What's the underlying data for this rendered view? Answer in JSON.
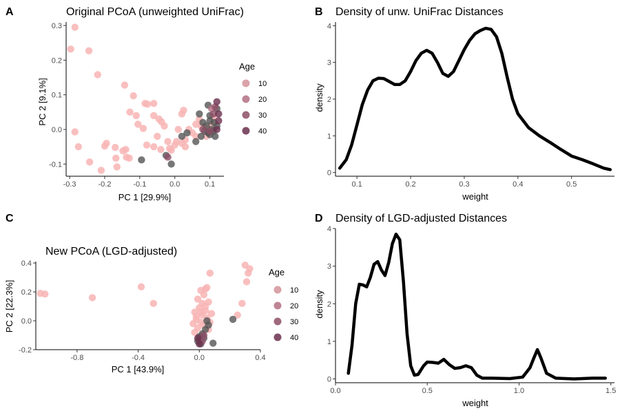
{
  "panels": [
    {
      "letter": "A",
      "title": "Original PCoA (unweighted UniFrac)"
    },
    {
      "letter": "B",
      "title": "Density of unw. UniFrac Distances"
    },
    {
      "letter": "C",
      "title": "New PCoA (LGD-adjusted)"
    },
    {
      "letter": "D",
      "title": "Density of LGD-adjusted Distances"
    }
  ],
  "colors": {
    "pink": "#f8b4b4",
    "gray": "#555555",
    "age10": "#d4939a",
    "age20": "#b37183",
    "age30": "#8e4f66",
    "age40": "#6b2f4d",
    "line": "#000000"
  },
  "chart_data": [
    {
      "type": "scatter",
      "title": "Original PCoA (unweighted UniFrac)",
      "xlabel": "PC 1 [29.9%]",
      "ylabel": "PC 2 [9.1%]",
      "xlim": [
        -0.31,
        0.14
      ],
      "ylim": [
        -0.135,
        0.31
      ],
      "xticks": [
        -0.3,
        -0.2,
        -0.1,
        0.0,
        0.1
      ],
      "xtick_labels": [
        "-0.3",
        "-0.2",
        "-0.1",
        "0.0",
        "0.1"
      ],
      "yticks": [
        -0.1,
        0.0,
        0.1,
        0.2,
        0.3
      ],
      "ytick_labels": [
        "-0.1",
        "0.0",
        "0.1",
        "0.2",
        "0.3"
      ],
      "legend": {
        "title": "Age",
        "entries": [
          "10",
          "20",
          "30",
          "40"
        ],
        "position": "right"
      },
      "points": [
        {
          "x": -0.285,
          "y": 0.295,
          "g": "pink"
        },
        {
          "x": -0.297,
          "y": 0.232,
          "g": "pink"
        },
        {
          "x": -0.245,
          "y": 0.227,
          "g": "pink"
        },
        {
          "x": -0.22,
          "y": 0.158,
          "g": "pink"
        },
        {
          "x": -0.285,
          "y": -0.007,
          "g": "pink"
        },
        {
          "x": -0.275,
          "y": -0.05,
          "g": "pink"
        },
        {
          "x": -0.243,
          "y": -0.094,
          "g": "pink"
        },
        {
          "x": -0.21,
          "y": -0.118,
          "g": "pink"
        },
        {
          "x": -0.195,
          "y": -0.04,
          "g": "pink"
        },
        {
          "x": -0.2,
          "y": -0.048,
          "g": "pink"
        },
        {
          "x": -0.17,
          "y": -0.052,
          "g": "pink"
        },
        {
          "x": -0.168,
          "y": -0.083,
          "g": "pink"
        },
        {
          "x": -0.165,
          "y": -0.108,
          "g": "pink"
        },
        {
          "x": -0.148,
          "y": -0.062,
          "g": "pink"
        },
        {
          "x": -0.14,
          "y": -0.058,
          "g": "pink"
        },
        {
          "x": -0.138,
          "y": -0.08,
          "g": "pink"
        },
        {
          "x": -0.13,
          "y": -0.083,
          "g": "pink"
        },
        {
          "x": -0.143,
          "y": 0.128,
          "g": "pink"
        },
        {
          "x": -0.118,
          "y": 0.097,
          "g": "pink"
        },
        {
          "x": -0.128,
          "y": 0.05,
          "g": "pink"
        },
        {
          "x": -0.11,
          "y": 0.04,
          "g": "pink"
        },
        {
          "x": -0.105,
          "y": 0.015,
          "g": "pink"
        },
        {
          "x": -0.09,
          "y": 0.003,
          "g": "pink"
        },
        {
          "x": -0.085,
          "y": 0.075,
          "g": "pink"
        },
        {
          "x": -0.078,
          "y": 0.073,
          "g": "pink"
        },
        {
          "x": -0.06,
          "y": 0.075,
          "g": "pink"
        },
        {
          "x": -0.06,
          "y": 0.04,
          "g": "pink"
        },
        {
          "x": -0.045,
          "y": 0.03,
          "g": "pink"
        },
        {
          "x": -0.03,
          "y": 0.01,
          "g": "pink"
        },
        {
          "x": -0.038,
          "y": 0.022,
          "g": "pink"
        },
        {
          "x": -0.08,
          "y": -0.045,
          "g": "pink"
        },
        {
          "x": -0.06,
          "y": -0.05,
          "g": "pink"
        },
        {
          "x": -0.05,
          "y": -0.02,
          "g": "pink"
        },
        {
          "x": -0.04,
          "y": -0.058,
          "g": "pink"
        },
        {
          "x": -0.02,
          "y": -0.035,
          "g": "pink"
        },
        {
          "x": -0.01,
          "y": -0.06,
          "g": "pink"
        },
        {
          "x": 0.0,
          "y": -0.045,
          "g": "pink"
        },
        {
          "x": 0.01,
          "y": 0.0,
          "g": "pink"
        },
        {
          "x": 0.005,
          "y": -0.035,
          "g": "pink"
        },
        {
          "x": 0.02,
          "y": -0.04,
          "g": "pink"
        },
        {
          "x": 0.03,
          "y": -0.05,
          "g": "pink"
        },
        {
          "x": 0.02,
          "y": 0.045,
          "g": "pink"
        },
        {
          "x": 0.025,
          "y": 0.055,
          "g": "pink"
        },
        {
          "x": 0.04,
          "y": 0.0,
          "g": "pink"
        },
        {
          "x": 0.05,
          "y": -0.01,
          "g": "pink"
        },
        {
          "x": 0.06,
          "y": 0.015,
          "g": "pink"
        },
        {
          "x": 0.07,
          "y": 0.03,
          "g": "pink"
        },
        {
          "x": 0.075,
          "y": 0.01,
          "g": "pink"
        },
        {
          "x": 0.085,
          "y": 0.005,
          "g": "pink"
        },
        {
          "x": 0.09,
          "y": -0.02,
          "g": "pink"
        },
        {
          "x": 0.095,
          "y": 0.005,
          "g": "pink"
        },
        {
          "x": 0.105,
          "y": 0.015,
          "g": "pink"
        },
        {
          "x": 0.11,
          "y": 0.035,
          "g": "pink"
        },
        {
          "x": 0.03,
          "y": -0.03,
          "g": "pink"
        },
        {
          "x": -0.015,
          "y": -0.055,
          "g": "pink"
        },
        {
          "x": 0.06,
          "y": -0.02,
          "g": "pink"
        },
        {
          "x": -0.095,
          "y": -0.088,
          "g": "gray"
        },
        {
          "x": -0.01,
          "y": -0.1,
          "g": "gray"
        },
        {
          "x": -0.025,
          "y": -0.075,
          "g": "gray"
        },
        {
          "x": 0.02,
          "y": -0.02,
          "g": "gray"
        },
        {
          "x": 0.035,
          "y": -0.01,
          "g": "gray"
        },
        {
          "x": 0.06,
          "y": -0.035,
          "g": "gray"
        },
        {
          "x": 0.075,
          "y": -0.02,
          "g": "gray"
        },
        {
          "x": 0.07,
          "y": 0.045,
          "g": "gray"
        },
        {
          "x": 0.095,
          "y": 0.07,
          "g": "gray"
        },
        {
          "x": 0.1,
          "y": 0.04,
          "g": "gray"
        },
        {
          "x": 0.09,
          "y": 0.01,
          "g": "gray"
        },
        {
          "x": 0.1,
          "y": -0.015,
          "g": "gray"
        },
        {
          "x": 0.11,
          "y": -0.005,
          "g": "gray"
        },
        {
          "x": 0.112,
          "y": 0.02,
          "g": "gray"
        },
        {
          "x": 0.12,
          "y": 0.06,
          "g": "gray"
        },
        {
          "x": 0.105,
          "y": 0.0,
          "g": "gray"
        },
        {
          "x": 0.115,
          "y": -0.02,
          "g": "gray"
        },
        {
          "x": 0.1,
          "y": 0.025,
          "g": "gray"
        },
        {
          "x": 0.085,
          "y": -0.005,
          "g": "gray"
        },
        {
          "x": 0.08,
          "y": 0.02,
          "g": "gray"
        },
        {
          "x": 0.12,
          "y": 0.01,
          "g": "gray"
        },
        {
          "x": 0.095,
          "y": -0.01,
          "g": "gray"
        },
        {
          "x": -0.02,
          "y": -0.08,
          "g": "age30"
        },
        {
          "x": 0.08,
          "y": 0.0,
          "g": "age30"
        },
        {
          "x": 0.12,
          "y": 0.08,
          "g": "age40"
        },
        {
          "x": 0.125,
          "y": 0.045,
          "g": "age40"
        },
        {
          "x": 0.115,
          "y": 0.065,
          "g": "age30"
        },
        {
          "x": 0.125,
          "y": 0.025,
          "g": "age40"
        },
        {
          "x": 0.11,
          "y": 0.045,
          "g": "age30"
        },
        {
          "x": 0.12,
          "y": 0.0,
          "g": "age40"
        },
        {
          "x": 0.105,
          "y": 0.06,
          "g": "age20"
        },
        {
          "x": 0.1,
          "y": -0.005,
          "g": "age30"
        }
      ]
    },
    {
      "type": "line",
      "title": "Density of unw. UniFrac Distances",
      "xlabel": "weight",
      "ylabel": "density",
      "xlim": [
        0.06,
        0.58
      ],
      "ylim": [
        -0.1,
        4.1
      ],
      "xticks": [
        0.1,
        0.2,
        0.3,
        0.4,
        0.5
      ],
      "xtick_labels": [
        "0.1",
        "0.2",
        "0.3",
        "0.4",
        "0.5"
      ],
      "yticks": [
        0,
        1,
        2,
        3,
        4
      ],
      "ytick_labels": [
        "0",
        "1",
        "2",
        "3",
        "4"
      ],
      "x": [
        0.068,
        0.08,
        0.09,
        0.1,
        0.11,
        0.12,
        0.13,
        0.14,
        0.15,
        0.16,
        0.17,
        0.18,
        0.19,
        0.2,
        0.21,
        0.22,
        0.23,
        0.24,
        0.25,
        0.26,
        0.27,
        0.28,
        0.29,
        0.3,
        0.31,
        0.32,
        0.33,
        0.34,
        0.35,
        0.36,
        0.37,
        0.38,
        0.39,
        0.4,
        0.42,
        0.44,
        0.46,
        0.48,
        0.5,
        0.52,
        0.54,
        0.56,
        0.572
      ],
      "y": [
        0.12,
        0.35,
        0.75,
        1.3,
        1.85,
        2.25,
        2.5,
        2.57,
        2.56,
        2.48,
        2.4,
        2.4,
        2.5,
        2.75,
        3.05,
        3.25,
        3.33,
        3.25,
        3.0,
        2.7,
        2.62,
        2.75,
        3.05,
        3.35,
        3.6,
        3.78,
        3.87,
        3.93,
        3.9,
        3.7,
        3.25,
        2.6,
        2.0,
        1.6,
        1.22,
        1.0,
        0.82,
        0.63,
        0.45,
        0.35,
        0.24,
        0.12,
        0.08
      ]
    },
    {
      "type": "scatter",
      "title": "New PCoA (LGD-adjusted)",
      "xlabel": "PC 1 [43.9%]",
      "ylabel": "PC 2 [22.3%]",
      "xlim": [
        -1.07,
        0.4
      ],
      "ylim": [
        -0.2,
        0.41
      ],
      "xticks": [
        -0.8,
        -0.4,
        0.0,
        0.4
      ],
      "xtick_labels": [
        "-0.8",
        "-0.4",
        "0.0",
        "0.4"
      ],
      "yticks": [
        -0.2,
        0.0,
        0.2,
        0.4
      ],
      "ytick_labels": [
        "-0.2",
        "0.0",
        "0.2",
        "0.4"
      ],
      "legend": {
        "title": "Age",
        "entries": [
          "10",
          "20",
          "30",
          "40"
        ],
        "position": "right"
      },
      "points": [
        {
          "x": -1.04,
          "y": 0.19,
          "g": "pink"
        },
        {
          "x": -1.01,
          "y": 0.185,
          "g": "pink"
        },
        {
          "x": -0.7,
          "y": 0.16,
          "g": "pink"
        },
        {
          "x": -0.38,
          "y": 0.235,
          "g": "pink"
        },
        {
          "x": -0.3,
          "y": 0.12,
          "g": "pink"
        },
        {
          "x": 0.3,
          "y": 0.385,
          "g": "pink"
        },
        {
          "x": 0.33,
          "y": 0.36,
          "g": "pink"
        },
        {
          "x": 0.32,
          "y": 0.33,
          "g": "pink"
        },
        {
          "x": 0.31,
          "y": 0.27,
          "g": "pink"
        },
        {
          "x": 0.28,
          "y": 0.12,
          "g": "pink"
        },
        {
          "x": 0.25,
          "y": 0.04,
          "g": "pink"
        },
        {
          "x": 0.07,
          "y": 0.33,
          "g": "pink"
        },
        {
          "x": 0.04,
          "y": 0.22,
          "g": "pink"
        },
        {
          "x": 0.03,
          "y": 0.18,
          "g": "pink"
        },
        {
          "x": 0.01,
          "y": 0.21,
          "g": "pink"
        },
        {
          "x": 0.05,
          "y": 0.23,
          "g": "pink"
        },
        {
          "x": -0.01,
          "y": 0.15,
          "g": "pink"
        },
        {
          "x": 0.02,
          "y": 0.12,
          "g": "pink"
        },
        {
          "x": 0.06,
          "y": 0.13,
          "g": "pink"
        },
        {
          "x": 0.0,
          "y": 0.09,
          "g": "pink"
        },
        {
          "x": 0.04,
          "y": 0.07,
          "g": "pink"
        },
        {
          "x": -0.03,
          "y": 0.06,
          "g": "pink"
        },
        {
          "x": 0.02,
          "y": 0.04,
          "g": "pink"
        },
        {
          "x": 0.05,
          "y": 0.02,
          "g": "pink"
        },
        {
          "x": -0.02,
          "y": 0.01,
          "g": "pink"
        },
        {
          "x": 0.01,
          "y": -0.01,
          "g": "pink"
        },
        {
          "x": -0.04,
          "y": -0.02,
          "g": "pink"
        },
        {
          "x": 0.03,
          "y": -0.03,
          "g": "pink"
        },
        {
          "x": -0.01,
          "y": -0.05,
          "g": "pink"
        },
        {
          "x": 0.06,
          "y": -0.06,
          "g": "pink"
        },
        {
          "x": -0.03,
          "y": -0.08,
          "g": "pink"
        },
        {
          "x": 0.02,
          "y": -0.1,
          "g": "pink"
        },
        {
          "x": 0.0,
          "y": -0.13,
          "g": "pink"
        },
        {
          "x": 0.04,
          "y": 0.1,
          "g": "pink"
        },
        {
          "x": 0.08,
          "y": 0.05,
          "g": "pink"
        },
        {
          "x": 0.01,
          "y": 0.06,
          "g": "pink"
        },
        {
          "x": -0.02,
          "y": 0.03,
          "g": "pink"
        },
        {
          "x": 0.07,
          "y": -0.01,
          "g": "pink"
        },
        {
          "x": 0.22,
          "y": 0.01,
          "g": "gray"
        },
        {
          "x": 0.09,
          "y": -0.155,
          "g": "gray"
        },
        {
          "x": 0.05,
          "y": 0.0,
          "g": "gray"
        },
        {
          "x": 0.04,
          "y": -0.06,
          "g": "gray"
        },
        {
          "x": 0.02,
          "y": -0.09,
          "g": "gray"
        },
        {
          "x": 0.0,
          "y": -0.11,
          "g": "gray"
        },
        {
          "x": 0.03,
          "y": -0.12,
          "g": "gray"
        },
        {
          "x": -0.01,
          "y": -0.14,
          "g": "gray"
        },
        {
          "x": 0.06,
          "y": -0.03,
          "g": "gray"
        },
        {
          "x": 0.01,
          "y": -0.16,
          "g": "gray"
        },
        {
          "x": 0.02,
          "y": -0.14,
          "g": "age30"
        },
        {
          "x": 0.0,
          "y": -0.16,
          "g": "age40"
        },
        {
          "x": 0.03,
          "y": -0.1,
          "g": "age30"
        },
        {
          "x": -0.01,
          "y": -0.12,
          "g": "age40"
        }
      ]
    },
    {
      "type": "line",
      "title": "Density of LGD-adjusted Distances",
      "xlabel": "weight",
      "ylabel": "density",
      "xlim": [
        0.0,
        1.52
      ],
      "ylim": [
        -0.1,
        4.0
      ],
      "xticks": [
        0.0,
        0.5,
        1.0,
        1.5
      ],
      "xtick_labels": [
        "0.0",
        "0.5",
        "1.0",
        "1.5"
      ],
      "yticks": [
        0,
        1,
        2,
        3,
        4
      ],
      "ytick_labels": [
        "0",
        "1",
        "2",
        "3",
        "4"
      ],
      "x": [
        0.07,
        0.09,
        0.11,
        0.13,
        0.15,
        0.17,
        0.19,
        0.21,
        0.23,
        0.25,
        0.27,
        0.29,
        0.31,
        0.33,
        0.35,
        0.37,
        0.39,
        0.41,
        0.43,
        0.45,
        0.48,
        0.5,
        0.53,
        0.56,
        0.59,
        0.62,
        0.65,
        0.68,
        0.71,
        0.74,
        0.77,
        0.8,
        0.85,
        0.95,
        1.02,
        1.06,
        1.08,
        1.1,
        1.12,
        1.15,
        1.2,
        1.3,
        1.4,
        1.47
      ],
      "y": [
        0.15,
        0.9,
        2.0,
        2.52,
        2.5,
        2.45,
        2.7,
        3.05,
        3.12,
        2.9,
        2.75,
        3.1,
        3.6,
        3.85,
        3.7,
        2.6,
        1.2,
        0.35,
        0.1,
        0.12,
        0.35,
        0.45,
        0.44,
        0.42,
        0.52,
        0.38,
        0.28,
        0.3,
        0.35,
        0.3,
        0.1,
        0.02,
        0.02,
        0.01,
        0.05,
        0.3,
        0.55,
        0.78,
        0.55,
        0.15,
        0.02,
        0.0,
        0.02,
        0.02
      ]
    }
  ]
}
